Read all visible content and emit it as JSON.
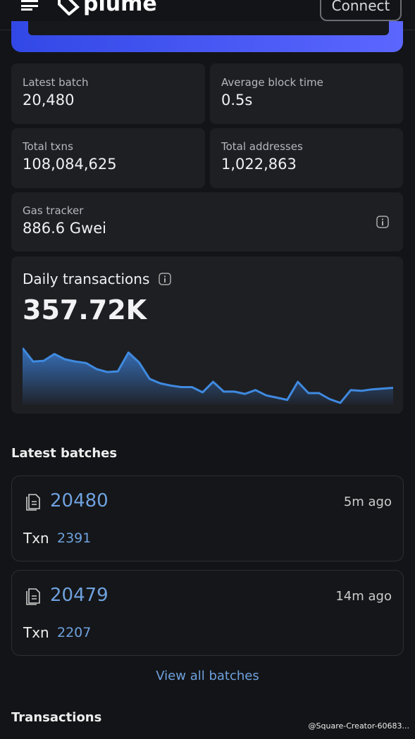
{
  "header": {
    "logo": "plume",
    "button": "Connect"
  },
  "stats": [
    {
      "label": "Latest batch",
      "value": "20,480"
    },
    {
      "label": "Average block time",
      "value": "0.5s"
    },
    {
      "label": "Total txns",
      "value": "108,084,625"
    },
    {
      "label": "Total addresses",
      "value": "1,022,863"
    },
    {
      "label": "Gas tracker",
      "value": "886.6 Gwei"
    }
  ],
  "daily_transactions": {
    "title": "Daily transactions",
    "value": "357.72K",
    "chart": {
      "values": [
        75,
        57,
        58,
        67,
        60,
        57,
        55,
        47,
        43,
        44,
        69,
        56,
        34,
        28,
        25,
        23,
        23,
        16,
        30,
        17,
        17,
        14,
        19,
        12,
        9,
        6,
        30,
        15,
        15,
        7,
        2,
        19,
        18,
        20,
        21,
        22
      ]
    }
  },
  "latest_batches": {
    "title": "Latest batches",
    "items": [
      {
        "id": "20480",
        "age": "5m ago",
        "txn_label": "Txn",
        "txn": "2391"
      },
      {
        "id": "20479",
        "age": "14m ago",
        "txn_label": "Txn",
        "txn": "2207"
      }
    ],
    "view_all": "View all batches"
  },
  "transactions": {
    "title": "Transactions"
  },
  "watermark": "@Square-Creator-60683..."
}
